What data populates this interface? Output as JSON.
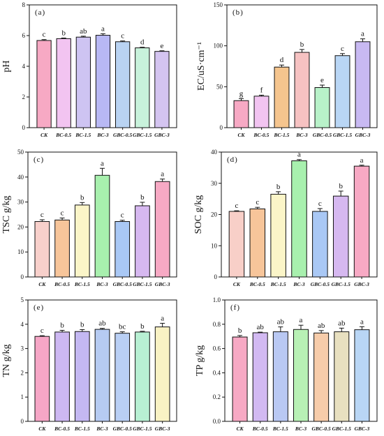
{
  "categories": [
    "CK",
    "BC-0.5",
    "BC-1.5",
    "BC-3",
    "GBC-0.5",
    "GBC-1.5",
    "GBC-3"
  ],
  "chart_data": [
    {
      "type": "bar",
      "panel": "(a)",
      "ylabel": "pH",
      "ylim": [
        0,
        8
      ],
      "yticks": [
        0,
        2,
        4,
        6,
        8
      ],
      "categories": [
        "CK",
        "BC-0.5",
        "BC-1.5",
        "BC-3",
        "GBC-0.5",
        "GBC-1.5",
        "GBC-3"
      ],
      "values": [
        5.68,
        5.8,
        5.9,
        6.02,
        5.6,
        5.2,
        4.97
      ],
      "errors": [
        0.06,
        0.04,
        0.06,
        0.1,
        0.05,
        0.04,
        0.04
      ],
      "labels": [
        "c",
        "b",
        "ab",
        "a",
        "c",
        "d",
        "e"
      ],
      "colors": [
        "#f7a9c4",
        "#f2c4f1",
        "#cec4f2",
        "#b8b8f4",
        "#b9d3f2",
        "#c8f2db",
        "#d4c4f0"
      ]
    },
    {
      "type": "bar",
      "panel": "(b)",
      "ylabel": "EC/uS·cm⁻¹",
      "ylim": [
        0,
        150
      ],
      "yticks": [
        0,
        50,
        100,
        150
      ],
      "categories": [
        "CK",
        "BC-0.5",
        "BC-1.5",
        "BC-3",
        "GBC-0.5",
        "GBC-1.5",
        "GBC-3"
      ],
      "values": [
        33,
        38.5,
        74,
        92,
        49,
        88,
        105
      ],
      "errors": [
        2.5,
        1.2,
        2.5,
        3.5,
        3,
        2.5,
        3.5
      ],
      "labels": [
        "g",
        "f",
        "d",
        "b",
        "e",
        "c",
        "a"
      ],
      "colors": [
        "#f7a9c4",
        "#f2c4f1",
        "#f5c58e",
        "#f6c2c2",
        "#b8f2c9",
        "#b9d6f5",
        "#c8b9f2"
      ]
    },
    {
      "type": "bar",
      "panel": "(c)",
      "ylabel": "TSC  g/kg",
      "ylim": [
        0,
        50
      ],
      "yticks": [
        0,
        10,
        20,
        30,
        40,
        50
      ],
      "categories": [
        "CK",
        "BC-0.5",
        "BC-1.5",
        "BC-3",
        "GBC-0.5",
        "GBC-1.5",
        "GBC-3"
      ],
      "values": [
        22.2,
        22.8,
        28.8,
        40.7,
        22.2,
        28.5,
        38.2
      ],
      "errors": [
        0.7,
        0.8,
        1.0,
        2.8,
        0.5,
        1.4,
        1.0
      ],
      "labels": [
        "c",
        "c",
        "b",
        "a",
        "c",
        "b",
        "a"
      ],
      "colors": [
        "#f8d0cb",
        "#f7c59a",
        "#fbf5c8",
        "#a8f0ae",
        "#a9c8f5",
        "#d6b8f0",
        "#f7a9c4"
      ]
    },
    {
      "type": "bar",
      "panel": "(d)",
      "ylabel": "SOC  g/kg",
      "ylim": [
        0,
        40
      ],
      "yticks": [
        0,
        10,
        20,
        30,
        40
      ],
      "categories": [
        "CK",
        "BC-0.5",
        "BC-1.5",
        "BC-3",
        "GBC-0.5",
        "GBC-1.5",
        "GBC-3"
      ],
      "values": [
        21.0,
        21.8,
        26.5,
        37.2,
        21.0,
        25.9,
        35.5
      ],
      "errors": [
        0.2,
        0.5,
        0.8,
        0.4,
        0.9,
        1.6,
        0.3
      ],
      "labels": [
        "c",
        "c",
        "b",
        "a",
        "c",
        "b",
        "a"
      ],
      "colors": [
        "#f8cfc8",
        "#f7c59a",
        "#fbf5c8",
        "#a8f0ae",
        "#a9c8f5",
        "#d6b8f0",
        "#f7a9c4"
      ]
    },
    {
      "type": "bar",
      "panel": "(e)",
      "ylabel": "TN  g/kg",
      "ylim": [
        0,
        5
      ],
      "yticks": [
        0,
        1,
        2,
        3,
        4,
        5
      ],
      "categories": [
        "CK",
        "BC-0.5",
        "BC-1.5",
        "BC-3",
        "GBC-0.5",
        "GBC-1.5",
        "GBC-3"
      ],
      "values": [
        3.5,
        3.68,
        3.7,
        3.79,
        3.63,
        3.68,
        3.89
      ],
      "errors": [
        0.03,
        0.07,
        0.08,
        0.04,
        0.06,
        0.03,
        0.15
      ],
      "labels": [
        "c",
        "b",
        "b",
        "ab",
        "bc",
        "b",
        "a"
      ],
      "colors": [
        "#f6a6c6",
        "#cdb8f2",
        "#c4b8f2",
        "#b6cbf2",
        "#b9cff4",
        "#b8f0d3",
        "#f9f2c4"
      ]
    },
    {
      "type": "bar",
      "panel": "(f)",
      "ylabel": "TP  g/kg",
      "ylim": [
        0,
        1.0
      ],
      "yticks": [
        0.0,
        0.2,
        0.4,
        0.6,
        0.8,
        1.0
      ],
      "categories": [
        "CK",
        "BC-0.5",
        "BC-1.5",
        "BC-3",
        "GBC-0.5",
        "GBC-1.5",
        "GBC-3"
      ],
      "values": [
        0.695,
        0.73,
        0.738,
        0.757,
        0.728,
        0.738,
        0.755
      ],
      "errors": [
        0.012,
        0.005,
        0.04,
        0.035,
        0.02,
        0.03,
        0.025
      ],
      "labels": [
        "b",
        "ab",
        "ab",
        "a",
        "ab",
        "ab",
        "a"
      ],
      "colors": [
        "#f7a9c4",
        "#d2b9f2",
        "#b9c8f3",
        "#b8f0b5",
        "#f7ccaa",
        "#e8e0c0",
        "#b9d6f5"
      ]
    }
  ]
}
